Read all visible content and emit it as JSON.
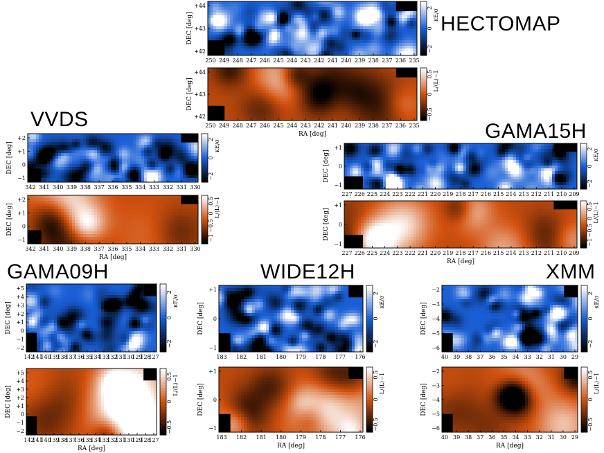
{
  "titles": {
    "hectomap": "HECTOMAP",
    "vvds": "VVDS",
    "gama15h": "GAMA15H",
    "gama09h": "GAMA09H",
    "wide12h": "WIDE12H",
    "xmm": "XMM"
  },
  "labels": {
    "dec": "DEC [deg]",
    "ra": "RA [deg]",
    "kappa_cbar": "κE/σ",
    "lum_cbar": "L/⟨L⟩−1"
  },
  "colors": {
    "kappa_low": "#000000",
    "kappa_mid": "#1a5fd6",
    "kappa_high": "#ffffff",
    "lum_low": "#000000",
    "lum_mid": "#d2520f",
    "lum_high": "#ffffff"
  },
  "fields": [
    {
      "id": "hectomap",
      "ra_ticks": [
        "250",
        "249",
        "248",
        "247",
        "246",
        "245",
        "244",
        "243",
        "242",
        "241",
        "240",
        "239",
        "238",
        "237",
        "236",
        "235"
      ],
      "dec_ticks": [
        "+44",
        "+43",
        "+42"
      ],
      "kappa_cbar_ticks": [
        "2",
        "0",
        "−2"
      ],
      "lum_cbar_ticks": [
        "0.5",
        "0",
        "−0.5"
      ],
      "show_ra_label": true
    },
    {
      "id": "vvds",
      "ra_ticks": [
        "342",
        "341",
        "340",
        "339",
        "338",
        "337",
        "336",
        "335",
        "334",
        "333",
        "332",
        "331",
        "330"
      ],
      "dec_ticks": [
        "+2",
        "+1",
        "0",
        "−1"
      ],
      "kappa_cbar_ticks": [
        "2",
        "0",
        "−2"
      ],
      "lum_cbar_ticks": [
        "0.5",
        "0",
        "−0.5",
        "−1"
      ],
      "show_ra_label": true
    },
    {
      "id": "gama15h",
      "ra_ticks": [
        "227",
        "226",
        "225",
        "224",
        "223",
        "222",
        "221",
        "220",
        "219",
        "218",
        "217",
        "216",
        "215",
        "214",
        "213",
        "212",
        "211",
        "210",
        "209"
      ],
      "dec_ticks": [
        "+1",
        "0",
        "−1"
      ],
      "kappa_cbar_ticks": [
        "2",
        "0",
        "−2"
      ],
      "lum_cbar_ticks": [
        "0.5",
        "0",
        "−0.5",
        "−1"
      ],
      "show_ra_label": true
    },
    {
      "id": "gama09h",
      "ra_ticks": [
        "142",
        "141",
        "140",
        "139",
        "138",
        "137",
        "136",
        "135",
        "134",
        "133",
        "132",
        "131",
        "130",
        "129",
        "128",
        "127"
      ],
      "dec_ticks": [
        "+5",
        "+4",
        "+3",
        "+2",
        "+1",
        "0",
        "−1",
        "−2"
      ],
      "kappa_cbar_ticks": [
        "2",
        "0",
        "−2"
      ],
      "lum_cbar_ticks": [
        "0.5",
        "0",
        "−0.5"
      ],
      "show_ra_label": true
    },
    {
      "id": "wide12h",
      "ra_ticks": [
        "183",
        "182",
        "181",
        "180",
        "179",
        "178",
        "177",
        "176"
      ],
      "dec_ticks": [
        "+1",
        "0",
        "−1"
      ],
      "kappa_cbar_ticks": [
        "2",
        "0",
        "−2"
      ],
      "lum_cbar_ticks": [
        "0.5",
        "0",
        "−0.5"
      ],
      "show_ra_label": true
    },
    {
      "id": "xmm",
      "ra_ticks": [
        "40",
        "39",
        "38",
        "37",
        "36",
        "35",
        "34",
        "33",
        "32",
        "31",
        "30",
        "29"
      ],
      "dec_ticks": [
        "−2",
        "−3",
        "−4",
        "−5",
        "−6"
      ],
      "kappa_cbar_ticks": [
        "2",
        "0",
        "−2"
      ],
      "lum_cbar_ticks": [
        "0.5",
        "0",
        "−0.5"
      ],
      "show_ra_label": true
    }
  ]
}
